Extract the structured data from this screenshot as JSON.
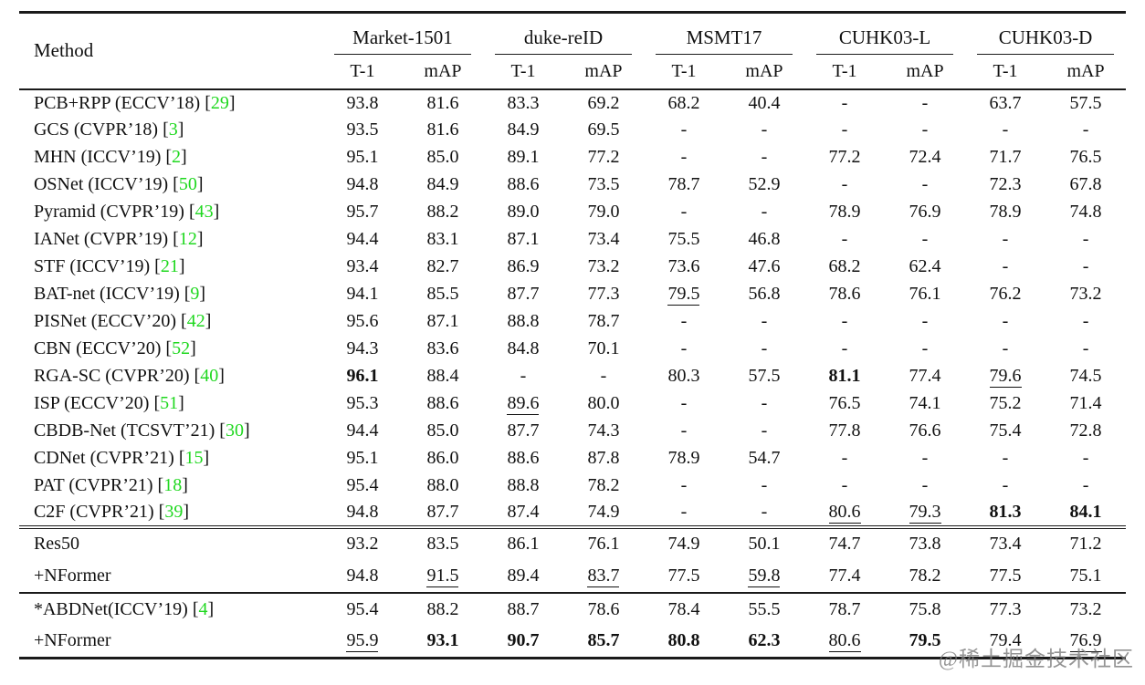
{
  "colors": {
    "citation_green": "#1fd81f",
    "text": "#111111",
    "rule": "#1a1a1a",
    "watermark_gray": "#7d7d7d"
  },
  "watermark": {
    "text": "@稀土掘金技术社区"
  },
  "table": {
    "method_header": "Method",
    "groups": [
      {
        "label": "Market-1501"
      },
      {
        "label": "duke-reID"
      },
      {
        "label": "MSMT17"
      },
      {
        "label": "CUHK03-L"
      },
      {
        "label": "CUHK03-D"
      }
    ],
    "subheaders": [
      "T-1",
      "mAP"
    ],
    "style_legend": {
      "": "normal",
      "b": "bold",
      "u": "underline"
    },
    "sections": [
      {
        "rows": [
          {
            "method": {
              "pre": "PCB+RPP (ECCV’18) [",
              "cite": "29",
              "post": "]"
            },
            "cells": [
              [
                "93.8",
                ""
              ],
              [
                "81.6",
                ""
              ],
              [
                "83.3",
                ""
              ],
              [
                "69.2",
                ""
              ],
              [
                "68.2",
                ""
              ],
              [
                "40.4",
                ""
              ],
              [
                "-",
                ""
              ],
              [
                "-",
                ""
              ],
              [
                "63.7",
                ""
              ],
              [
                "57.5",
                ""
              ]
            ]
          },
          {
            "method": {
              "pre": "GCS (CVPR’18) [",
              "cite": "3",
              "post": "]"
            },
            "cells": [
              [
                "93.5",
                ""
              ],
              [
                "81.6",
                ""
              ],
              [
                "84.9",
                ""
              ],
              [
                "69.5",
                ""
              ],
              [
                "-",
                ""
              ],
              [
                "-",
                ""
              ],
              [
                "-",
                ""
              ],
              [
                "-",
                ""
              ],
              [
                "-",
                ""
              ],
              [
                "-",
                ""
              ]
            ]
          },
          {
            "method": {
              "pre": "MHN (ICCV’19) [",
              "cite": "2",
              "post": "]"
            },
            "cells": [
              [
                "95.1",
                ""
              ],
              [
                "85.0",
                ""
              ],
              [
                "89.1",
                ""
              ],
              [
                "77.2",
                ""
              ],
              [
                "-",
                ""
              ],
              [
                "-",
                ""
              ],
              [
                "77.2",
                ""
              ],
              [
                "72.4",
                ""
              ],
              [
                "71.7",
                ""
              ],
              [
                "76.5",
                ""
              ]
            ]
          },
          {
            "method": {
              "pre": "OSNet (ICCV’19) [",
              "cite": "50",
              "post": "]"
            },
            "cells": [
              [
                "94.8",
                ""
              ],
              [
                "84.9",
                ""
              ],
              [
                "88.6",
                ""
              ],
              [
                "73.5",
                ""
              ],
              [
                "78.7",
                ""
              ],
              [
                "52.9",
                ""
              ],
              [
                "-",
                ""
              ],
              [
                "-",
                ""
              ],
              [
                "72.3",
                ""
              ],
              [
                "67.8",
                ""
              ]
            ]
          },
          {
            "method": {
              "pre": "Pyramid (CVPR’19) [",
              "cite": "43",
              "post": "]"
            },
            "cells": [
              [
                "95.7",
                ""
              ],
              [
                "88.2",
                ""
              ],
              [
                "89.0",
                ""
              ],
              [
                "79.0",
                ""
              ],
              [
                "-",
                ""
              ],
              [
                "-",
                ""
              ],
              [
                "78.9",
                ""
              ],
              [
                "76.9",
                ""
              ],
              [
                "78.9",
                ""
              ],
              [
                "74.8",
                ""
              ]
            ]
          },
          {
            "method": {
              "pre": "IANet (CVPR’19) [",
              "cite": "12",
              "post": "]"
            },
            "cells": [
              [
                "94.4",
                ""
              ],
              [
                "83.1",
                ""
              ],
              [
                "87.1",
                ""
              ],
              [
                "73.4",
                ""
              ],
              [
                "75.5",
                ""
              ],
              [
                "46.8",
                ""
              ],
              [
                "-",
                ""
              ],
              [
                "-",
                ""
              ],
              [
                "-",
                ""
              ],
              [
                "-",
                ""
              ]
            ]
          },
          {
            "method": {
              "pre": "STF (ICCV’19) [",
              "cite": "21",
              "post": "]"
            },
            "cells": [
              [
                "93.4",
                ""
              ],
              [
                "82.7",
                ""
              ],
              [
                "86.9",
                ""
              ],
              [
                "73.2",
                ""
              ],
              [
                "73.6",
                ""
              ],
              [
                "47.6",
                ""
              ],
              [
                "68.2",
                ""
              ],
              [
                "62.4",
                ""
              ],
              [
                "-",
                ""
              ],
              [
                "-",
                ""
              ]
            ]
          },
          {
            "method": {
              "pre": "BAT-net (ICCV’19) [",
              "cite": "9",
              "post": "]"
            },
            "cells": [
              [
                "94.1",
                ""
              ],
              [
                "85.5",
                ""
              ],
              [
                "87.7",
                ""
              ],
              [
                "77.3",
                ""
              ],
              [
                "79.5",
                "u"
              ],
              [
                "56.8",
                ""
              ],
              [
                "78.6",
                ""
              ],
              [
                "76.1",
                ""
              ],
              [
                "76.2",
                ""
              ],
              [
                "73.2",
                ""
              ]
            ]
          },
          {
            "method": {
              "pre": "PISNet (ECCV’20) [",
              "cite": "42",
              "post": "]"
            },
            "cells": [
              [
                "95.6",
                ""
              ],
              [
                "87.1",
                ""
              ],
              [
                "88.8",
                ""
              ],
              [
                "78.7",
                ""
              ],
              [
                "-",
                ""
              ],
              [
                "-",
                ""
              ],
              [
                "-",
                ""
              ],
              [
                "-",
                ""
              ],
              [
                "-",
                ""
              ],
              [
                "-",
                ""
              ]
            ]
          },
          {
            "method": {
              "pre": "CBN (ECCV’20) [",
              "cite": "52",
              "post": "]"
            },
            "cells": [
              [
                "94.3",
                ""
              ],
              [
                "83.6",
                ""
              ],
              [
                "84.8",
                ""
              ],
              [
                "70.1",
                ""
              ],
              [
                "-",
                ""
              ],
              [
                "-",
                ""
              ],
              [
                "-",
                ""
              ],
              [
                "-",
                ""
              ],
              [
                "-",
                ""
              ],
              [
                "-",
                ""
              ]
            ]
          },
          {
            "method": {
              "pre": "RGA-SC (CVPR’20) [",
              "cite": "40",
              "post": "]"
            },
            "cells": [
              [
                "96.1",
                "b"
              ],
              [
                "88.4",
                ""
              ],
              [
                "-",
                ""
              ],
              [
                "-",
                ""
              ],
              [
                "80.3",
                ""
              ],
              [
                "57.5",
                ""
              ],
              [
                "81.1",
                "b"
              ],
              [
                "77.4",
                ""
              ],
              [
                "79.6",
                "u"
              ],
              [
                "74.5",
                ""
              ]
            ]
          },
          {
            "method": {
              "pre": "ISP (ECCV’20) [",
              "cite": "51",
              "post": "]"
            },
            "cells": [
              [
                "95.3",
                ""
              ],
              [
                "88.6",
                ""
              ],
              [
                "89.6",
                "u"
              ],
              [
                "80.0",
                ""
              ],
              [
                "-",
                ""
              ],
              [
                "-",
                ""
              ],
              [
                "76.5",
                ""
              ],
              [
                "74.1",
                ""
              ],
              [
                "75.2",
                ""
              ],
              [
                "71.4",
                ""
              ]
            ]
          },
          {
            "method": {
              "pre": "CBDB-Net (TCSVT’21) [",
              "cite": "30",
              "post": "]"
            },
            "cells": [
              [
                "94.4",
                ""
              ],
              [
                "85.0",
                ""
              ],
              [
                "87.7",
                ""
              ],
              [
                "74.3",
                ""
              ],
              [
                "-",
                ""
              ],
              [
                "-",
                ""
              ],
              [
                "77.8",
                ""
              ],
              [
                "76.6",
                ""
              ],
              [
                "75.4",
                ""
              ],
              [
                "72.8",
                ""
              ]
            ]
          },
          {
            "method": {
              "pre": "CDNet (CVPR’21) [",
              "cite": "15",
              "post": "]"
            },
            "cells": [
              [
                "95.1",
                ""
              ],
              [
                "86.0",
                ""
              ],
              [
                "88.6",
                ""
              ],
              [
                "87.8",
                ""
              ],
              [
                "78.9",
                ""
              ],
              [
                "54.7",
                ""
              ],
              [
                "-",
                ""
              ],
              [
                "-",
                ""
              ],
              [
                "-",
                ""
              ],
              [
                "-",
                ""
              ]
            ]
          },
          {
            "method": {
              "pre": "PAT (CVPR’21) [",
              "cite": "18",
              "post": "]"
            },
            "cells": [
              [
                "95.4",
                ""
              ],
              [
                "88.0",
                ""
              ],
              [
                "88.8",
                ""
              ],
              [
                "78.2",
                ""
              ],
              [
                "-",
                ""
              ],
              [
                "-",
                ""
              ],
              [
                "-",
                ""
              ],
              [
                "-",
                ""
              ],
              [
                "-",
                ""
              ],
              [
                "-",
                ""
              ]
            ]
          },
          {
            "method": {
              "pre": "C2F (CVPR’21) [",
              "cite": "39",
              "post": "]"
            },
            "cells": [
              [
                "94.8",
                ""
              ],
              [
                "87.7",
                ""
              ],
              [
                "87.4",
                ""
              ],
              [
                "74.9",
                ""
              ],
              [
                "-",
                ""
              ],
              [
                "-",
                ""
              ],
              [
                "80.6",
                "u"
              ],
              [
                "79.3",
                "u"
              ],
              [
                "81.3",
                "b"
              ],
              [
                "84.1",
                "b"
              ]
            ]
          }
        ]
      },
      {
        "rows": [
          {
            "method": {
              "pre": "Res50",
              "cite": "",
              "post": ""
            },
            "cells": [
              [
                "93.2",
                ""
              ],
              [
                "83.5",
                ""
              ],
              [
                "86.1",
                ""
              ],
              [
                "76.1",
                ""
              ],
              [
                "74.9",
                ""
              ],
              [
                "50.1",
                ""
              ],
              [
                "74.7",
                ""
              ],
              [
                "73.8",
                ""
              ],
              [
                "73.4",
                ""
              ],
              [
                "71.2",
                ""
              ]
            ]
          },
          {
            "method": {
              "pre": "+NFormer",
              "cite": "",
              "post": ""
            },
            "cells": [
              [
                "94.8",
                ""
              ],
              [
                "91.5",
                "u"
              ],
              [
                "89.4",
                ""
              ],
              [
                "83.7",
                "u"
              ],
              [
                "77.5",
                ""
              ],
              [
                "59.8",
                "u"
              ],
              [
                "77.4",
                ""
              ],
              [
                "78.2",
                ""
              ],
              [
                "77.5",
                ""
              ],
              [
                "75.1",
                ""
              ]
            ]
          }
        ]
      },
      {
        "rows": [
          {
            "method": {
              "pre": "*ABDNet(ICCV’19) [",
              "cite": "4",
              "post": "]"
            },
            "cells": [
              [
                "95.4",
                ""
              ],
              [
                "88.2",
                ""
              ],
              [
                "88.7",
                ""
              ],
              [
                "78.6",
                ""
              ],
              [
                "78.4",
                ""
              ],
              [
                "55.5",
                ""
              ],
              [
                "78.7",
                ""
              ],
              [
                "75.8",
                ""
              ],
              [
                "77.3",
                ""
              ],
              [
                "73.2",
                ""
              ]
            ]
          },
          {
            "method": {
              "pre": "+NFormer",
              "cite": "",
              "post": ""
            },
            "cells": [
              [
                "95.9",
                "u"
              ],
              [
                "93.1",
                "b"
              ],
              [
                "90.7",
                "b"
              ],
              [
                "85.7",
                "b"
              ],
              [
                "80.8",
                "b"
              ],
              [
                "62.3",
                "b"
              ],
              [
                "80.6",
                "u"
              ],
              [
                "79.5",
                "b"
              ],
              [
                "79.4",
                ""
              ],
              [
                "76.9",
                "u"
              ]
            ]
          }
        ]
      }
    ]
  }
}
